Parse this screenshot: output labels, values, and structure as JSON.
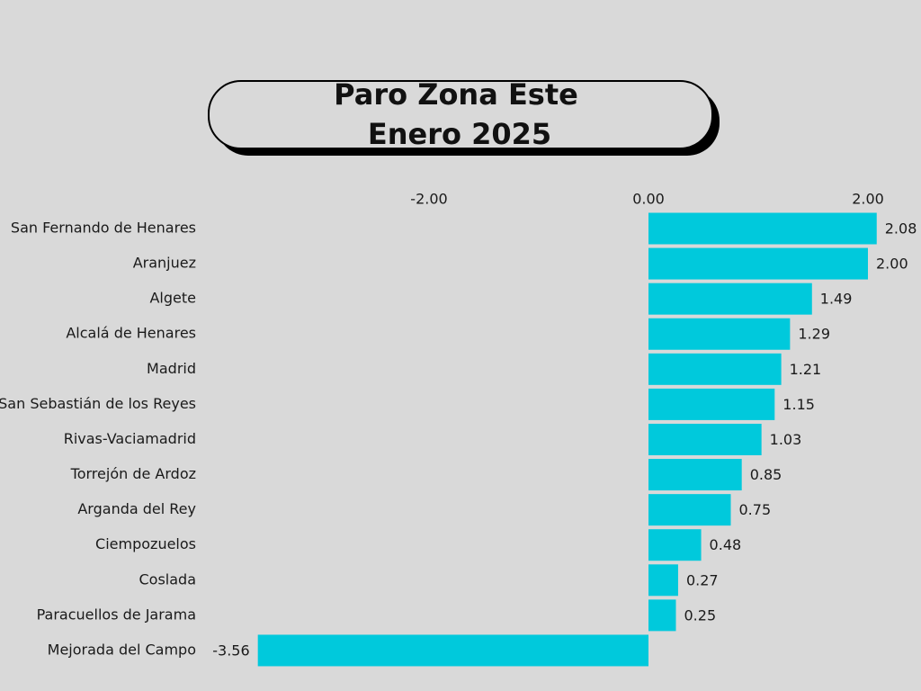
{
  "chart_data": {
    "type": "barh",
    "title": "Paro Zona Este",
    "subtitle": "Enero 2025",
    "categories": [
      "San Fernando de Henares",
      "Aranjuez",
      "Algete",
      "Alcalá de Henares",
      "Madrid",
      "San Sebastián de los Reyes",
      "Rivas-Vaciamadrid",
      "Torrejón de Ardoz",
      "Arganda del Rey",
      "Ciempozuelos",
      "Coslada",
      "Paracuellos de Jarama",
      "Mejorada del Campo"
    ],
    "values": [
      2.08,
      2.0,
      1.49,
      1.29,
      1.21,
      1.15,
      1.03,
      0.85,
      0.75,
      0.48,
      0.27,
      0.25,
      -3.56
    ],
    "value_labels": [
      "2.08",
      "2.00",
      "1.49",
      "1.29",
      "1.21",
      "1.15",
      "1.03",
      "0.85",
      "0.75",
      "0.48",
      "0.27",
      "0.25",
      "-3.56"
    ],
    "color": "#00c9dc",
    "xlim": [
      -3.6,
      2.1
    ],
    "xticks": [
      {
        "value": -2,
        "label": "-2.00"
      },
      {
        "value": 0,
        "label": "0.00"
      },
      {
        "value": 2,
        "label": "2.00"
      }
    ]
  }
}
